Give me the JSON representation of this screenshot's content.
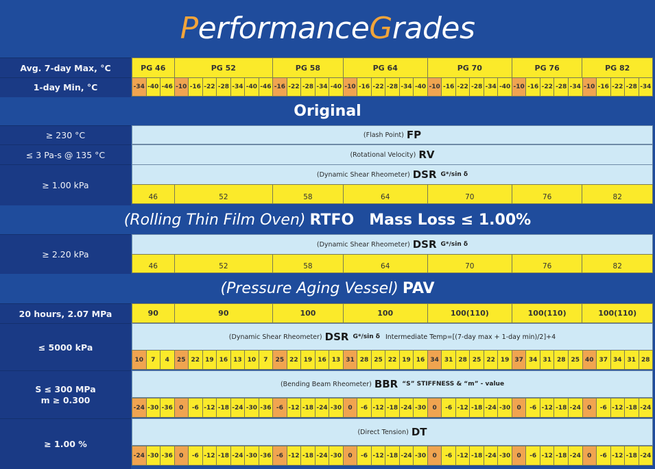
{
  "title": {
    "p": "P",
    "erformance": "erformance ",
    "g": "G",
    "rades": "rades",
    "accent_color": "#f2a43a"
  },
  "colors": {
    "background": "#1f4c9c",
    "label_bg": "#1a3a85",
    "yellow": "#fbea2a",
    "orange": "#f0a450",
    "light_blue": "#cfe9f6"
  },
  "labels": {
    "max": "Avg. 7-day Max, °C",
    "min": "1-day Min, °C",
    "fp": "≥ 230 °C",
    "rv": "≤ 3 Pa-s @ 135 °C",
    "dsr_orig": "≥ 1.00 kPa",
    "dsr_rtfo": "≥ 2.20 kPa",
    "pav": "20 hours, 2.07 MPa",
    "dsr_pav": "≤ 5000 kPa",
    "bbr_1": "S ≤ 300 MPa",
    "bbr_2": "m ≥ 0.300",
    "dt": "≥ 1.00 %"
  },
  "bands": {
    "original": "Original",
    "rtfo_italic": "(Rolling Thin Film Oven)",
    "rtfo_bold": "RTFO",
    "rtfo_mass": "Mass Loss ≤ 1.00%",
    "pav_italic": "(Pressure Aging Vessel)",
    "pav_bold": "PAV"
  },
  "tests": {
    "fp": {
      "desc": "(Flash Point)",
      "abbr": "FP"
    },
    "rv": {
      "desc": "(Rotational Velocity)",
      "abbr": "RV"
    },
    "dsr": {
      "desc": "(Dynamic Shear Rheometer)",
      "abbr": "DSR",
      "sub": "G*/sin δ"
    },
    "dsr_pav": {
      "desc": "(Dynamic Shear Rheometer)",
      "abbr": "DSR",
      "sub": "G*/sin δ",
      "extra": "Intermediate Temp=[(7-day max + 1-day min)/2]+4"
    },
    "bbr": {
      "desc": "(Bending Beam Rheometer)",
      "abbr": "BBR",
      "sub": "“S” STIFFNESS & “m” - value"
    },
    "dt": {
      "desc": "(Direct Tension)",
      "abbr": "DT"
    }
  },
  "grades": [
    {
      "name": "PG 46",
      "value": "46",
      "pav_temp": "90",
      "cols": 3
    },
    {
      "name": "PG 52",
      "value": "52",
      "pav_temp": "90",
      "cols": 7
    },
    {
      "name": "PG 58",
      "value": "58",
      "pav_temp": "100",
      "cols": 5
    },
    {
      "name": "PG 64",
      "value": "64",
      "pav_temp": "100",
      "cols": 6
    },
    {
      "name": "PG 70",
      "value": "70",
      "pav_temp": "100(110)",
      "cols": 6
    },
    {
      "name": "PG 76",
      "value": "76",
      "pav_temp": "100(110)",
      "cols": 5
    },
    {
      "name": "PG 82",
      "value": "82",
      "pav_temp": "100(110)",
      "cols": 5
    }
  ],
  "min_temps": [
    "-34",
    "-40",
    "-46",
    "-10",
    "-16",
    "-22",
    "-28",
    "-34",
    "-40",
    "-46",
    "-16",
    "-22",
    "-28",
    "-34",
    "-40",
    "-10",
    "-16",
    "-22",
    "-28",
    "-34",
    "-40",
    "-10",
    "-16",
    "-22",
    "-28",
    "-34",
    "-40",
    "-10",
    "-16",
    "-22",
    "-28",
    "-34",
    "-10",
    "-16",
    "-22",
    "-28",
    "-34"
  ],
  "dsr_pav_temps": [
    "10",
    "7",
    "4",
    "25",
    "22",
    "19",
    "16",
    "13",
    "10",
    "7",
    "25",
    "22",
    "19",
    "16",
    "13",
    "31",
    "28",
    "25",
    "22",
    "19",
    "16",
    "34",
    "31",
    "28",
    "25",
    "22",
    "19",
    "37",
    "34",
    "31",
    "28",
    "25",
    "40",
    "37",
    "34",
    "31",
    "28"
  ],
  "bbr_temps": [
    "-24",
    "-30",
    "-36",
    "0",
    "-6",
    "-12",
    "-18",
    "-24",
    "-30",
    "-36",
    "-6",
    "-12",
    "-18",
    "-24",
    "-30",
    "0",
    "-6",
    "-12",
    "-18",
    "-24",
    "-30",
    "0",
    "-6",
    "-12",
    "-18",
    "-24",
    "-30",
    "0",
    "-6",
    "-12",
    "-18",
    "-24",
    "0",
    "-6",
    "-12",
    "-18",
    "-24"
  ],
  "dt_temps": [
    "-24",
    "-30",
    "-36",
    "0",
    "-6",
    "-12",
    "-18",
    "-24",
    "-30",
    "-36",
    "-6",
    "-12",
    "-18",
    "-24",
    "-30",
    "0",
    "-6",
    "-12",
    "-18",
    "-24",
    "-30",
    "0",
    "-6",
    "-12",
    "-18",
    "-24",
    "-30",
    "0",
    "-6",
    "-12",
    "-18",
    "-24",
    "0",
    "-6",
    "-12",
    "-18",
    "-24"
  ],
  "highlight_index": [
    0,
    3,
    10,
    15,
    21,
    27,
    32
  ]
}
